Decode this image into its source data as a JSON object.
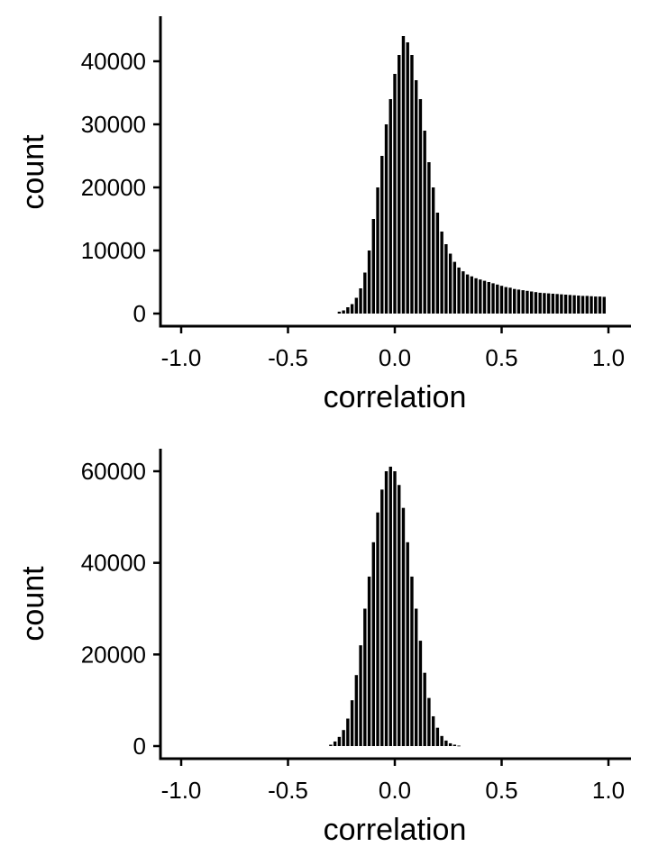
{
  "chart_data": [
    {
      "type": "bar",
      "xlabel": "correlation",
      "ylabel": "count",
      "xlim": [
        -1.05,
        1.05
      ],
      "ylim": [
        0,
        46000
      ],
      "x_ticks": [
        "-1.0",
        "-0.5",
        "0.0",
        "0.5",
        "1.0"
      ],
      "y_ticks": [
        "0",
        "10000",
        "20000",
        "30000",
        "40000"
      ],
      "grid": false,
      "legend": "none",
      "bar_color": "#000000",
      "x": [
        -0.26,
        -0.24,
        -0.22,
        -0.2,
        -0.18,
        -0.16,
        -0.14,
        -0.12,
        -0.1,
        -0.08,
        -0.06,
        -0.04,
        -0.02,
        0.0,
        0.02,
        0.04,
        0.06,
        0.08,
        0.1,
        0.12,
        0.14,
        0.16,
        0.18,
        0.2,
        0.22,
        0.24,
        0.26,
        0.28,
        0.3,
        0.32,
        0.34,
        0.36,
        0.38,
        0.4,
        0.42,
        0.44,
        0.46,
        0.48,
        0.5,
        0.52,
        0.54,
        0.56,
        0.58,
        0.6,
        0.62,
        0.64,
        0.66,
        0.68,
        0.7,
        0.72,
        0.74,
        0.76,
        0.78,
        0.8,
        0.82,
        0.84,
        0.86,
        0.88,
        0.9,
        0.92,
        0.94,
        0.96,
        0.98
      ],
      "values": [
        300,
        500,
        1000,
        1500,
        2500,
        4000,
        6500,
        10000,
        15000,
        20000,
        25000,
        30000,
        34000,
        38000,
        41000,
        44000,
        43000,
        41000,
        37000,
        34000,
        29000,
        24000,
        20000,
        16000,
        13000,
        11000,
        9500,
        8200,
        7300,
        6700,
        6200,
        5900,
        5600,
        5400,
        5200,
        5000,
        4800,
        4600,
        4400,
        4200,
        4100,
        3900,
        3800,
        3700,
        3600,
        3500,
        3400,
        3300,
        3250,
        3200,
        3150,
        3100,
        3050,
        3000,
        2950,
        2900,
        2850,
        2800,
        2800,
        2750,
        2700,
        2700,
        2650
      ]
    },
    {
      "type": "bar",
      "xlabel": "correlation",
      "ylabel": "count",
      "xlim": [
        -1.05,
        1.05
      ],
      "ylim": [
        0,
        63000
      ],
      "x_ticks": [
        "-1.0",
        "-0.5",
        "0.0",
        "0.5",
        "1.0"
      ],
      "y_ticks": [
        "0",
        "20000",
        "40000",
        "60000"
      ],
      "grid": false,
      "legend": "none",
      "bar_color": "#000000",
      "x": [
        -0.3,
        -0.28,
        -0.26,
        -0.24,
        -0.22,
        -0.2,
        -0.18,
        -0.16,
        -0.14,
        -0.12,
        -0.1,
        -0.08,
        -0.06,
        -0.04,
        -0.02,
        0.0,
        0.02,
        0.04,
        0.06,
        0.08,
        0.1,
        0.12,
        0.14,
        0.16,
        0.18,
        0.2,
        0.22,
        0.24,
        0.26,
        0.28,
        0.3
      ],
      "values": [
        300,
        1000,
        2000,
        3500,
        6000,
        10000,
        15500,
        22000,
        30000,
        37000,
        44500,
        51000,
        56000,
        60000,
        61000,
        60000,
        57000,
        52000,
        44500,
        37000,
        30000,
        23000,
        16000,
        10500,
        6500,
        4000,
        2200,
        1200,
        600,
        300,
        100
      ]
    }
  ]
}
